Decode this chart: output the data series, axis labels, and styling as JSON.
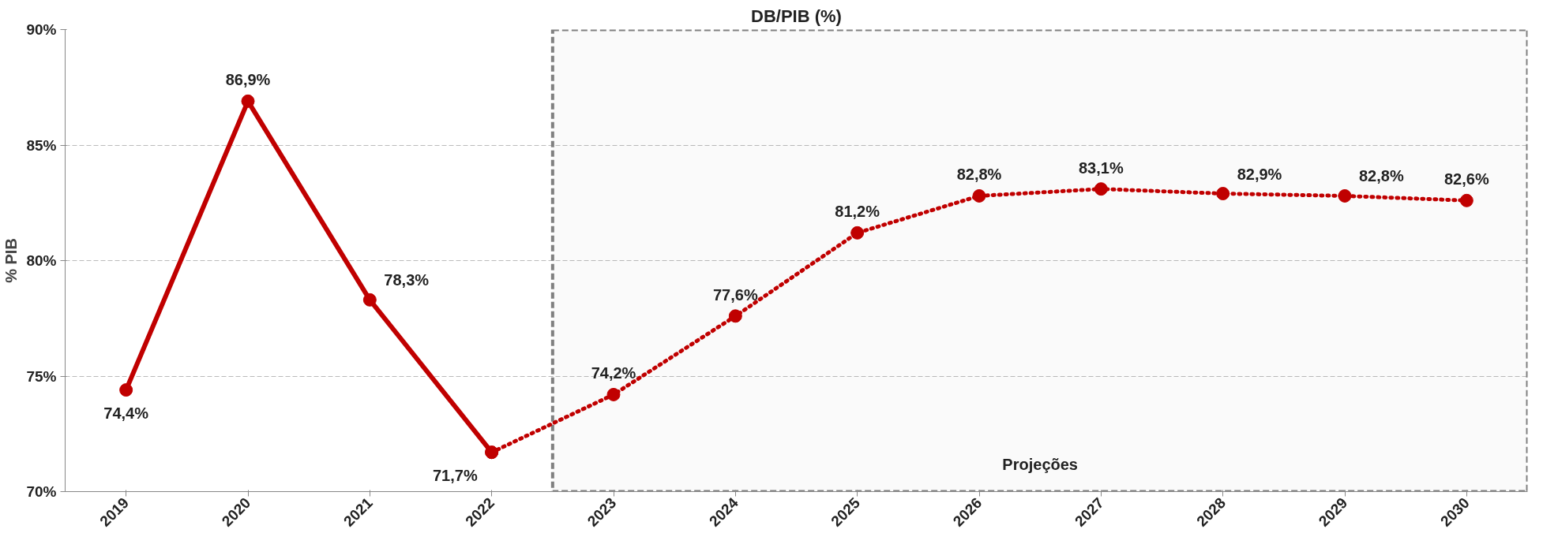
{
  "chart_data": {
    "type": "line",
    "title": "DB/PIB (%)",
    "ylabel": "% PIB",
    "categories": [
      "2019",
      "2020",
      "2021",
      "2022",
      "2023",
      "2024",
      "2025",
      "2026",
      "2027",
      "2028",
      "2029",
      "2030"
    ],
    "series": [
      {
        "color": "#c00000",
        "line_style": "solid",
        "values": [
          74.4,
          86.9,
          78.3,
          71.7,
          null,
          null,
          null,
          null,
          null,
          null,
          null,
          null
        ],
        "value_labels": [
          "74,4%",
          "86,9%",
          "78,3%",
          "71,7%",
          null,
          null,
          null,
          null,
          null,
          null,
          null,
          null
        ]
      },
      {
        "color": "#c00000",
        "line_style": "dotted",
        "values": [
          null,
          null,
          null,
          71.7,
          74.2,
          77.6,
          81.2,
          82.8,
          83.1,
          82.9,
          82.8,
          82.6
        ],
        "value_labels": [
          null,
          null,
          null,
          null,
          "74,2%",
          "77,6%",
          "81,2%",
          "82,8%",
          "83,1%",
          "82,9%",
          "82,8%",
          "82,6%"
        ]
      }
    ],
    "ylim": [
      70,
      90
    ],
    "yticks": [
      {
        "value": 70,
        "label": "70%"
      },
      {
        "value": 75,
        "label": "75%"
      },
      {
        "value": 80,
        "label": "80%"
      },
      {
        "value": 85,
        "label": "85%"
      },
      {
        "value": 90,
        "label": "90%"
      }
    ],
    "grid": "y",
    "marker": "circle",
    "bands": [
      {
        "axis": "x",
        "from": "2023",
        "to": "2030",
        "label": "Projeções",
        "color": "#808080"
      }
    ]
  }
}
